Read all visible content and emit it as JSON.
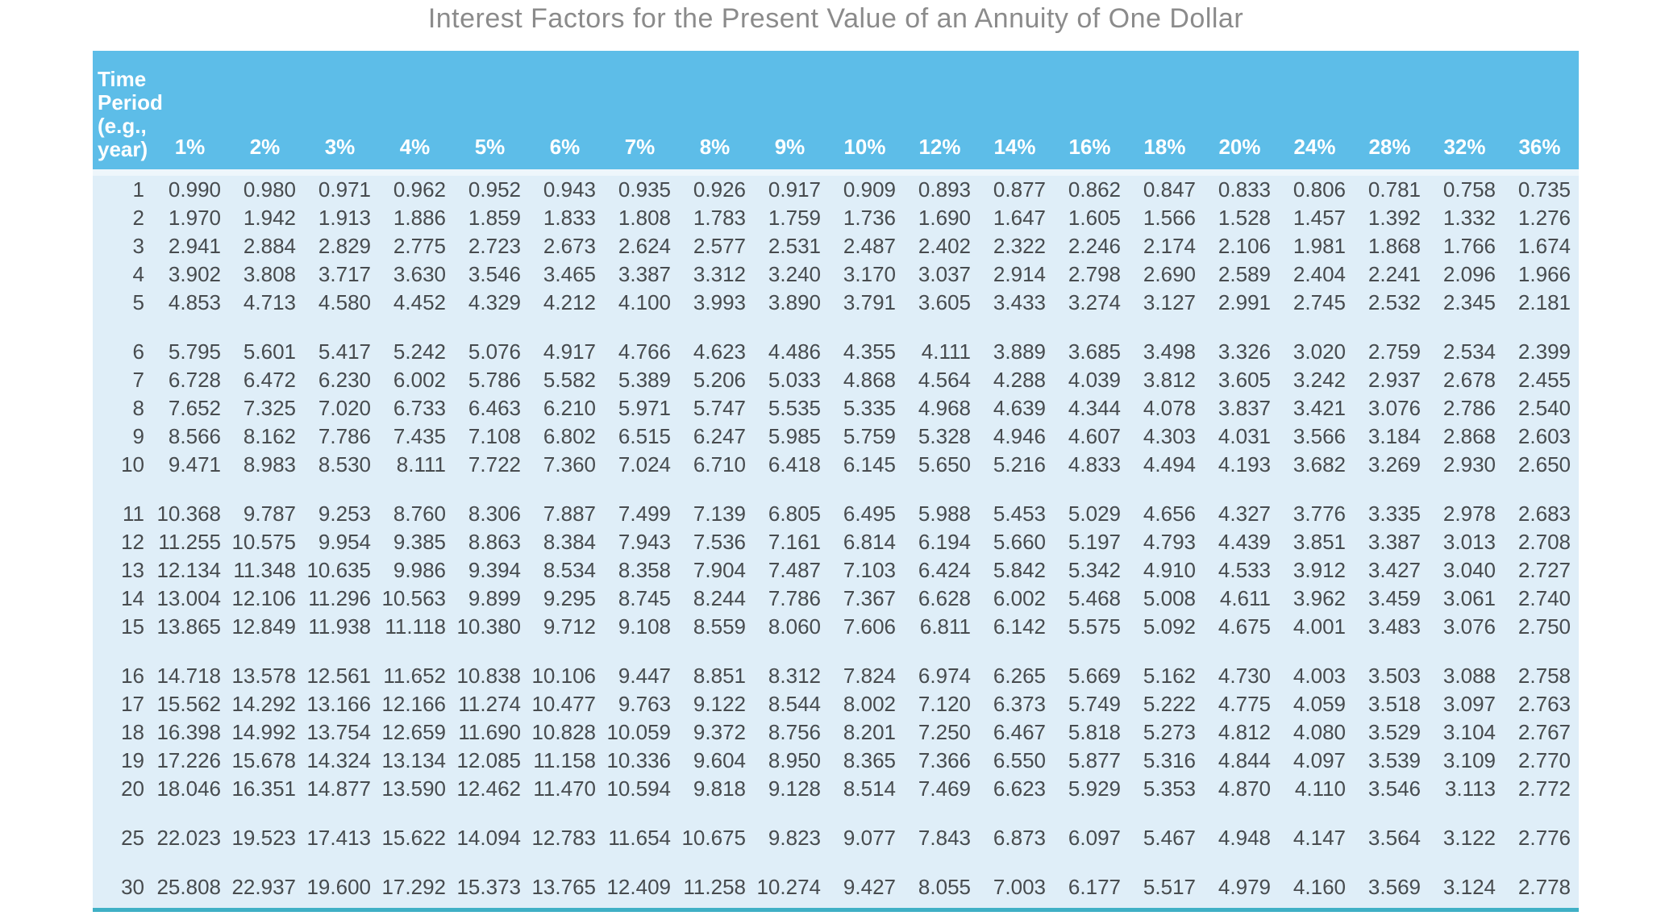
{
  "title": "Interest Factors for the Present Value of an Annuity of One Dollar",
  "table": {
    "corner_label": "Time\nPeriod\n(e.g.,\nyear)",
    "rate_headers": [
      "1%",
      "2%",
      "3%",
      "4%",
      "5%",
      "6%",
      "7%",
      "8%",
      "9%",
      "10%",
      "12%",
      "14%",
      "16%",
      "18%",
      "20%",
      "24%",
      "28%",
      "32%",
      "36%"
    ],
    "rows": [
      {
        "period": "1",
        "values": [
          "0.990",
          "0.980",
          "0.971",
          "0.962",
          "0.952",
          "0.943",
          "0.935",
          "0.926",
          "0.917",
          "0.909",
          "0.893",
          "0.877",
          "0.862",
          "0.847",
          "0.833",
          "0.806",
          "0.781",
          "0.758",
          "0.735"
        ]
      },
      {
        "period": "2",
        "values": [
          "1.970",
          "1.942",
          "1.913",
          "1.886",
          "1.859",
          "1.833",
          "1.808",
          "1.783",
          "1.759",
          "1.736",
          "1.690",
          "1.647",
          "1.605",
          "1.566",
          "1.528",
          "1.457",
          "1.392",
          "1.332",
          "1.276"
        ]
      },
      {
        "period": "3",
        "values": [
          "2.941",
          "2.884",
          "2.829",
          "2.775",
          "2.723",
          "2.673",
          "2.624",
          "2.577",
          "2.531",
          "2.487",
          "2.402",
          "2.322",
          "2.246",
          "2.174",
          "2.106",
          "1.981",
          "1.868",
          "1.766",
          "1.674"
        ]
      },
      {
        "period": "4",
        "values": [
          "3.902",
          "3.808",
          "3.717",
          "3.630",
          "3.546",
          "3.465",
          "3.387",
          "3.312",
          "3.240",
          "3.170",
          "3.037",
          "2.914",
          "2.798",
          "2.690",
          "2.589",
          "2.404",
          "2.241",
          "2.096",
          "1.966"
        ]
      },
      {
        "period": "5",
        "values": [
          "4.853",
          "4.713",
          "4.580",
          "4.452",
          "4.329",
          "4.212",
          "4.100",
          "3.993",
          "3.890",
          "3.791",
          "3.605",
          "3.433",
          "3.274",
          "3.127",
          "2.991",
          "2.745",
          "2.532",
          "2.345",
          "2.181"
        ]
      },
      {
        "period": "6",
        "values": [
          "5.795",
          "5.601",
          "5.417",
          "5.242",
          "5.076",
          "4.917",
          "4.766",
          "4.623",
          "4.486",
          "4.355",
          "4.111",
          "3.889",
          "3.685",
          "3.498",
          "3.326",
          "3.020",
          "2.759",
          "2.534",
          "2.399"
        ]
      },
      {
        "period": "7",
        "values": [
          "6.728",
          "6.472",
          "6.230",
          "6.002",
          "5.786",
          "5.582",
          "5.389",
          "5.206",
          "5.033",
          "4.868",
          "4.564",
          "4.288",
          "4.039",
          "3.812",
          "3.605",
          "3.242",
          "2.937",
          "2.678",
          "2.455"
        ]
      },
      {
        "period": "8",
        "values": [
          "7.652",
          "7.325",
          "7.020",
          "6.733",
          "6.463",
          "6.210",
          "5.971",
          "5.747",
          "5.535",
          "5.335",
          "4.968",
          "4.639",
          "4.344",
          "4.078",
          "3.837",
          "3.421",
          "3.076",
          "2.786",
          "2.540"
        ]
      },
      {
        "period": "9",
        "values": [
          "8.566",
          "8.162",
          "7.786",
          "7.435",
          "7.108",
          "6.802",
          "6.515",
          "6.247",
          "5.985",
          "5.759",
          "5.328",
          "4.946",
          "4.607",
          "4.303",
          "4.031",
          "3.566",
          "3.184",
          "2.868",
          "2.603"
        ]
      },
      {
        "period": "10",
        "values": [
          "9.471",
          "8.983",
          "8.530",
          "8.111",
          "7.722",
          "7.360",
          "7.024",
          "6.710",
          "6.418",
          "6.145",
          "5.650",
          "5.216",
          "4.833",
          "4.494",
          "4.193",
          "3.682",
          "3.269",
          "2.930",
          "2.650"
        ]
      },
      {
        "period": "11",
        "values": [
          "10.368",
          "9.787",
          "9.253",
          "8.760",
          "8.306",
          "7.887",
          "7.499",
          "7.139",
          "6.805",
          "6.495",
          "5.988",
          "5.453",
          "5.029",
          "4.656",
          "4.327",
          "3.776",
          "3.335",
          "2.978",
          "2.683"
        ]
      },
      {
        "period": "12",
        "values": [
          "11.255",
          "10.575",
          "9.954",
          "9.385",
          "8.863",
          "8.384",
          "7.943",
          "7.536",
          "7.161",
          "6.814",
          "6.194",
          "5.660",
          "5.197",
          "4.793",
          "4.439",
          "3.851",
          "3.387",
          "3.013",
          "2.708"
        ]
      },
      {
        "period": "13",
        "values": [
          "12.134",
          "11.348",
          "10.635",
          "9.986",
          "9.394",
          "8.534",
          "8.358",
          "7.904",
          "7.487",
          "7.103",
          "6.424",
          "5.842",
          "5.342",
          "4.910",
          "4.533",
          "3.912",
          "3.427",
          "3.040",
          "2.727"
        ]
      },
      {
        "period": "14",
        "values": [
          "13.004",
          "12.106",
          "11.296",
          "10.563",
          "9.899",
          "9.295",
          "8.745",
          "8.244",
          "7.786",
          "7.367",
          "6.628",
          "6.002",
          "5.468",
          "5.008",
          "4.611",
          "3.962",
          "3.459",
          "3.061",
          "2.740"
        ]
      },
      {
        "period": "15",
        "values": [
          "13.865",
          "12.849",
          "11.938",
          "11.118",
          "10.380",
          "9.712",
          "9.108",
          "8.559",
          "8.060",
          "7.606",
          "6.811",
          "6.142",
          "5.575",
          "5.092",
          "4.675",
          "4.001",
          "3.483",
          "3.076",
          "2.750"
        ]
      },
      {
        "period": "16",
        "values": [
          "14.718",
          "13.578",
          "12.561",
          "11.652",
          "10.838",
          "10.106",
          "9.447",
          "8.851",
          "8.312",
          "7.824",
          "6.974",
          "6.265",
          "5.669",
          "5.162",
          "4.730",
          "4.003",
          "3.503",
          "3.088",
          "2.758"
        ]
      },
      {
        "period": "17",
        "values": [
          "15.562",
          "14.292",
          "13.166",
          "12.166",
          "11.274",
          "10.477",
          "9.763",
          "9.122",
          "8.544",
          "8.002",
          "7.120",
          "6.373",
          "5.749",
          "5.222",
          "4.775",
          "4.059",
          "3.518",
          "3.097",
          "2.763"
        ]
      },
      {
        "period": "18",
        "values": [
          "16.398",
          "14.992",
          "13.754",
          "12.659",
          "11.690",
          "10.828",
          "10.059",
          "9.372",
          "8.756",
          "8.201",
          "7.250",
          "6.467",
          "5.818",
          "5.273",
          "4.812",
          "4.080",
          "3.529",
          "3.104",
          "2.767"
        ]
      },
      {
        "period": "19",
        "values": [
          "17.226",
          "15.678",
          "14.324",
          "13.134",
          "12.085",
          "11.158",
          "10.336",
          "9.604",
          "8.950",
          "8.365",
          "7.366",
          "6.550",
          "5.877",
          "5.316",
          "4.844",
          "4.097",
          "3.539",
          "3.109",
          "2.770"
        ]
      },
      {
        "period": "20",
        "values": [
          "18.046",
          "16.351",
          "14.877",
          "13.590",
          "12.462",
          "11.470",
          "10.594",
          "9.818",
          "9.128",
          "8.514",
          "7.469",
          "6.623",
          "5.929",
          "5.353",
          "4.870",
          "4.110",
          "3.546",
          "3.113",
          "2.772"
        ]
      },
      {
        "period": "25",
        "values": [
          "22.023",
          "19.523",
          "17.413",
          "15.622",
          "14.094",
          "12.783",
          "11.654",
          "10.675",
          "9.823",
          "9.077",
          "7.843",
          "6.873",
          "6.097",
          "5.467",
          "4.948",
          "4.147",
          "3.564",
          "3.122",
          "2.776"
        ]
      },
      {
        "period": "30",
        "values": [
          "25.808",
          "22.937",
          "19.600",
          "17.292",
          "15.373",
          "13.765",
          "12.409",
          "11.258",
          "10.274",
          "9.427",
          "8.055",
          "7.003",
          "6.177",
          "5.517",
          "4.979",
          "4.160",
          "3.569",
          "3.124",
          "2.778"
        ]
      }
    ],
    "gap_after": [
      "5",
      "10",
      "15",
      "20",
      "25"
    ]
  },
  "colors": {
    "header_bg": "#5dbde8",
    "header_text": "#ffffff",
    "body_bg": "#dfeef8",
    "body_strip": "#eef6fb",
    "text": "#474b4e",
    "title_text": "#8b8b8b",
    "bottom_rule": "#3fb0c6"
  }
}
